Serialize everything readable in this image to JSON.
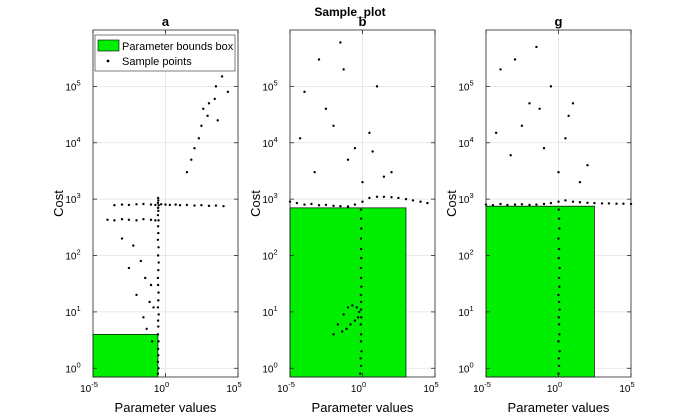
{
  "chart_data": {
    "type": "scatter",
    "title": "Sample_plot",
    "x_scale": "log",
    "y_scale": "log",
    "xlim": [
      1e-05,
      100000
    ],
    "ylim": [
      0.7,
      1000000
    ],
    "xticks": [
      1e-05,
      1,
      100000
    ],
    "xtick_labels": [
      {
        "b": "10",
        "e": "-5"
      },
      {
        "b": "10",
        "e": "0"
      },
      {
        "b": "10",
        "e": "5"
      }
    ],
    "yticks": [
      1,
      10,
      100,
      1000,
      10000,
      100000
    ],
    "ytick_labels": [
      {
        "b": "10",
        "e": "0"
      },
      {
        "b": "10",
        "e": "1"
      },
      {
        "b": "10",
        "e": "2"
      },
      {
        "b": "10",
        "e": "3"
      },
      {
        "b": "10",
        "e": "4"
      },
      {
        "b": "10",
        "e": "5"
      }
    ],
    "xlabel": "Parameter values",
    "ylabel": "Cost",
    "grid": true,
    "legend": {
      "location": "top-left",
      "entries": [
        {
          "label": "Parameter bounds box",
          "kind": "patch",
          "color": "#00ee00"
        },
        {
          "label": "Sample points",
          "kind": "marker",
          "color": "#000000"
        }
      ]
    },
    "colors": {
      "box": "#00ee00",
      "points": "#000000"
    },
    "panels": [
      {
        "name": "a",
        "bounds_box": {
          "x": [
            1e-05,
            0.3
          ],
          "y": [
            0.7,
            4
          ]
        },
        "series": [
          {
            "name": "vertical trace",
            "x": [
              0.3,
              0.33,
              0.3,
              0.32,
              0.31,
              0.33,
              0.3,
              0.32,
              0.31,
              0.34,
              0.3,
              0.32,
              0.33,
              0.31,
              0.3,
              0.32,
              0.34,
              0.31,
              0.33,
              0.3,
              0.32,
              0.31,
              0.33,
              0.3,
              0.32,
              0.31,
              0.34,
              0.3,
              0.32,
              0.31
            ],
            "y": [
              0.8,
              1.0,
              1.3,
              1.7,
              2.2,
              3,
              4,
              5.5,
              7,
              9,
              12,
              16,
              22,
              30,
              40,
              55,
              75,
              100,
              140,
              190,
              250,
              330,
              420,
              520,
              620,
              700,
              780,
              860,
              950,
              1050
            ]
          },
          {
            "name": "horizontal band",
            "x": [
              0.0003,
              0.001,
              0.003,
              0.01,
              0.03,
              0.1,
              0.2,
              0.5,
              1,
              2,
              5,
              10,
              30,
              100,
              300,
              1000,
              3000,
              10000
            ],
            "y": [
              780,
              800,
              790,
              810,
              820,
              800,
              790,
              810,
              800,
              790,
              800,
              780,
              790,
              770,
              780,
              760,
              770,
              750
            ]
          },
          {
            "name": "lower band",
            "x": [
              0.0001,
              0.0003,
              0.001,
              0.003,
              0.01,
              0.03,
              0.1,
              0.2
            ],
            "y": [
              430,
              420,
              440,
              430,
              420,
              440,
              430,
              420
            ]
          },
          {
            "name": "scattered high cost",
            "x": [
              30,
              100,
              300,
              1000,
              3000,
              10000,
              50000,
              200,
              800,
              2500,
              8000,
              20000,
              60,
              400,
              4000,
              15000
            ],
            "y": [
              3000,
              8000,
              20000,
              50000,
              100000,
              200000,
              500000,
              12000,
              30000,
              60000,
              150000,
              80000,
              5000,
              40000,
              25000,
              300000
            ]
          },
          {
            "name": "scattered low",
            "x": [
              0.001,
              0.003,
              0.01,
              0.03,
              0.05,
              0.1,
              0.15,
              0.02,
              0.006,
              0.08,
              0.04,
              0.12
            ],
            "y": [
              200,
              60,
              20,
              8,
              5,
              30,
              12,
              80,
              150,
              15,
              40,
              3
            ]
          }
        ]
      },
      {
        "name": "b",
        "bounds_box": {
          "x": [
            1e-05,
            1000
          ],
          "y": [
            0.7,
            700
          ]
        },
        "series": [
          {
            "name": "vertical trace",
            "x": [
              0.7,
              0.8,
              0.75,
              0.85,
              0.78,
              0.8,
              0.76,
              0.82,
              0.79,
              0.8,
              0.77,
              0.83,
              0.8,
              0.78,
              0.81,
              0.8,
              0.79,
              0.82,
              0.8,
              0.78
            ],
            "y": [
              0.8,
              1.1,
              1.5,
              2,
              3,
              4,
              6,
              8,
              11,
              15,
              20,
              28,
              40,
              60,
              90,
              130,
              200,
              300,
              450,
              650
            ]
          },
          {
            "name": "upper band",
            "x": [
              1e-05,
              3e-05,
              0.0001,
              0.0003,
              0.001,
              0.003,
              0.01,
              0.03,
              0.1,
              0.3,
              1,
              3,
              10,
              30,
              100,
              300,
              1000,
              3000,
              10000,
              30000
            ],
            "y": [
              900,
              850,
              800,
              820,
              780,
              790,
              760,
              750,
              740,
              800,
              900,
              1050,
              1100,
              1100,
              1080,
              1050,
              1000,
              950,
              900,
              850
            ]
          },
          {
            "name": "loop",
            "x": [
              0.01,
              0.02,
              0.05,
              0.1,
              0.2,
              0.4,
              0.6,
              0.5,
              0.3,
              0.15,
              0.08,
              0.04
            ],
            "y": [
              4,
              6,
              9,
              12,
              13,
              12,
              10,
              8,
              7,
              6,
              5,
              4.5
            ]
          },
          {
            "name": "scattered high cost",
            "x": [
              0.0001,
              0.001,
              0.01,
              0.1,
              1,
              10,
              100,
              0.003,
              0.03,
              0.3,
              3,
              30,
              5e-05,
              0.0005,
              0.05,
              5
            ],
            "y": [
              80000,
              300000,
              20000,
              5000,
              2000,
              100000,
              3000,
              40000,
              600000,
              8000,
              15000,
              2500,
              12000,
              3000,
              200000,
              7000
            ]
          }
        ]
      },
      {
        "name": "g",
        "bounds_box": {
          "x": [
            1e-05,
            300
          ],
          "y": [
            0.7,
            750
          ]
        },
        "series": [
          {
            "name": "vertical trace",
            "x": [
              1.0,
              1.1,
              1.05,
              1.2,
              1.0,
              1.15,
              1.1,
              1.05,
              1.2,
              1.1,
              1.0,
              1.15,
              1.1,
              1.2,
              1.05,
              1.1,
              1.0,
              1.15,
              1.1,
              1.05
            ],
            "y": [
              0.8,
              1.1,
              1.5,
              2,
              3,
              4,
              6,
              8,
              11,
              15,
              20,
              28,
              40,
              60,
              90,
              130,
              200,
              300,
              450,
              650
            ]
          },
          {
            "name": "horizontal band",
            "x": [
              1e-05,
              3e-05,
              0.0001,
              0.0003,
              0.001,
              0.003,
              0.01,
              0.03,
              0.1,
              0.3,
              1,
              3,
              10,
              30,
              100,
              300,
              1000,
              3000,
              10000,
              30000,
              100000
            ],
            "y": [
              800,
              780,
              820,
              790,
              800,
              810,
              790,
              800,
              820,
              850,
              900,
              950,
              900,
              880,
              860,
              850,
              840,
              840,
              830,
              830,
              820
            ]
          },
          {
            "name": "scattered high cost",
            "x": [
              0.0001,
              0.001,
              0.01,
              0.1,
              1,
              10,
              100,
              0.003,
              0.03,
              0.3,
              3,
              30,
              0.0005,
              0.05,
              5,
              5e-05
            ],
            "y": [
              200000,
              300000,
              50000,
              8000,
              3000,
              50000,
              4000,
              20000,
              500000,
              100000,
              12000,
              2000,
              6000,
              40000,
              30000,
              15000
            ]
          }
        ]
      }
    ]
  }
}
